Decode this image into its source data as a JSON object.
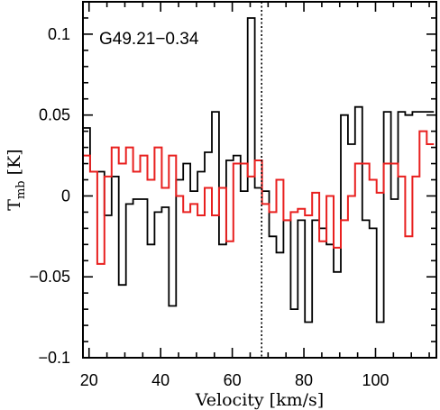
{
  "chart_data": {
    "type": "line",
    "style": "step",
    "annotation": "G49.21−0.34",
    "xlabel": "Velocity [km/s]",
    "ylabel": "T",
    "ylabel_sub": "mb",
    "ylabel_unit": " [K]",
    "xlim": [
      18.3,
      117
    ],
    "ylim": [
      -0.1,
      0.12
    ],
    "x_ticks": [
      20,
      40,
      60,
      80,
      100
    ],
    "x_tick_labels": [
      "20",
      "40",
      "60",
      "80",
      "100"
    ],
    "y_ticks": [
      -0.1,
      -0.05,
      0,
      0.05,
      0.1
    ],
    "y_tick_labels": [
      "−0.1",
      "−0.05",
      "0",
      "0.05",
      "0.1"
    ],
    "vline_x": 68.2,
    "grid": false,
    "bin_edges": [
      18.3,
      20.3,
      22.3,
      24.3,
      26.3,
      28.3,
      30.3,
      32.3,
      34.3,
      36.3,
      38.3,
      40.3,
      42.3,
      44.3,
      46.3,
      48.3,
      50.3,
      52.3,
      54.3,
      56.3,
      58.3,
      60.3,
      62.3,
      64.3,
      66.3,
      68.3,
      70.3,
      72.3,
      74.3,
      76.3,
      78.3,
      80.3,
      82.3,
      84.3,
      86.3,
      88.3,
      90.3,
      92.3,
      94.3,
      96.3,
      98.3,
      100.3,
      102.3,
      104.3,
      106.3,
      108.3,
      110.3,
      112.3,
      114.3,
      116.3
    ],
    "series": [
      {
        "color": "#000000",
        "values": [
          0.042,
          0.015,
          0.015,
          -0.012,
          0.012,
          -0.055,
          -0.005,
          -0.002,
          -0.002,
          -0.03,
          -0.01,
          -0.007,
          -0.068,
          0.01,
          0.02,
          0.003,
          0.015,
          0.027,
          0.052,
          -0.03,
          0.022,
          0.025,
          0.003,
          0.11,
          0.005,
          0.003,
          -0.025,
          -0.035,
          -0.015,
          -0.07,
          -0.015,
          -0.078,
          -0.015,
          -0.02,
          -0.03,
          -0.047,
          0.05,
          0.032,
          0.055,
          -0.015,
          -0.02,
          -0.078,
          0.052,
          -0.002,
          0.052,
          0.05,
          0.052,
          0.052,
          0.052
        ]
      },
      {
        "color": "#e8201f",
        "values": [
          0.025,
          0.015,
          -0.042,
          0.012,
          0.03,
          0.02,
          0.03,
          0.015,
          0.025,
          0.01,
          0.03,
          0.005,
          0.025,
          0.0,
          -0.01,
          -0.005,
          -0.012,
          0.005,
          -0.012,
          0.005,
          -0.028,
          0.02,
          0.02,
          0.012,
          0.022,
          -0.005,
          -0.01,
          0.01,
          -0.015,
          -0.01,
          -0.008,
          -0.012,
          0.002,
          -0.028,
          0.0,
          -0.032,
          -0.015,
          0.0,
          0.02,
          0.02,
          0.01,
          0.002,
          0.02,
          0.02,
          0.012,
          -0.025,
          0.012,
          0.04,
          0.032
        ]
      }
    ]
  }
}
